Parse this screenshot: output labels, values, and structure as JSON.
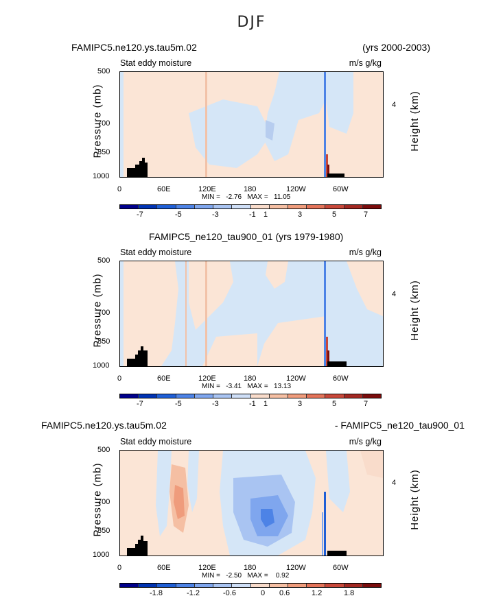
{
  "figure": {
    "title": "DJF"
  },
  "chart_data": [
    {
      "type": "heatmap",
      "title_left": "FAMIPC5.ne120.ys.tau5m.02",
      "title_right": "(yrs 2000-2003)",
      "subtitle_left": "Stat eddy moisture",
      "subtitle_right": "m/s g/kg",
      "ylabel": "Pressure (mb)",
      "y2label": "Height (km)",
      "yticks": [
        "500",
        "700",
        "850",
        "1000"
      ],
      "y2ticks": [
        "4"
      ],
      "xticks": [
        "0",
        "60E",
        "120E",
        "180",
        "120W",
        "60W"
      ],
      "stats": "MIN =   -2.76   MAX =   11.05",
      "colorbar": {
        "labels": [
          "-7",
          "-5",
          "-3",
          "-1",
          "1",
          "3",
          "5",
          "7"
        ],
        "colors": [
          "#00008b",
          "#0033b3",
          "#1f5fd6",
          "#4d83e6",
          "#7fa6ee",
          "#a9c4f2",
          "#cfdff7",
          "#f9dccb",
          "#f5bfa3",
          "#ef9c7c",
          "#e37359",
          "#c8483a",
          "#a22822",
          "#7a0c0c"
        ]
      }
    },
    {
      "type": "heatmap",
      "title_left": "FAMIPC5_ne120_tau900_01 (yrs 1979-1980)",
      "title_right": "",
      "subtitle_left": "Stat eddy moisture",
      "subtitle_right": "m/s g/kg",
      "ylabel": "Pressure (mb)",
      "y2label": "Height (km)",
      "yticks": [
        "500",
        "700",
        "850",
        "1000"
      ],
      "y2ticks": [
        "4"
      ],
      "xticks": [
        "0",
        "60E",
        "120E",
        "180",
        "120W",
        "60W"
      ],
      "stats": "MIN =   -3.41   MAX =   13.13",
      "colorbar": {
        "labels": [
          "-7",
          "-5",
          "-3",
          "-1",
          "1",
          "3",
          "5",
          "7"
        ],
        "colors": [
          "#00008b",
          "#0033b3",
          "#1f5fd6",
          "#4d83e6",
          "#7fa6ee",
          "#a9c4f2",
          "#cfdff7",
          "#f9dccb",
          "#f5bfa3",
          "#ef9c7c",
          "#e37359",
          "#c8483a",
          "#a22822",
          "#7a0c0c"
        ]
      }
    },
    {
      "type": "heatmap",
      "title_left": "FAMIPC5.ne120.ys.tau5m.02",
      "title_right": "- FAMIPC5_ne120_tau900_01",
      "subtitle_left": "Stat eddy moisture",
      "subtitle_right": "m/s g/kg",
      "ylabel": "Pressure (mb)",
      "y2label": "Height (km)",
      "yticks": [
        "500",
        "700",
        "850",
        "1000"
      ],
      "y2ticks": [
        "4"
      ],
      "xticks": [
        "0",
        "60E",
        "120E",
        "180",
        "120W",
        "60W"
      ],
      "stats": "MIN =   -2.50   MAX =    0.92",
      "colorbar": {
        "labels": [
          "-1.8",
          "-1.2",
          "-0.6",
          "0",
          "0.6",
          "1.2",
          "1.8"
        ],
        "colors": [
          "#00008b",
          "#0033b3",
          "#1f5fd6",
          "#4d83e6",
          "#7fa6ee",
          "#a9c4f2",
          "#cfdff7",
          "#f9dccb",
          "#f5bfa3",
          "#ef9c7c",
          "#e37359",
          "#c8483a",
          "#a22822",
          "#7a0c0c"
        ]
      }
    }
  ]
}
